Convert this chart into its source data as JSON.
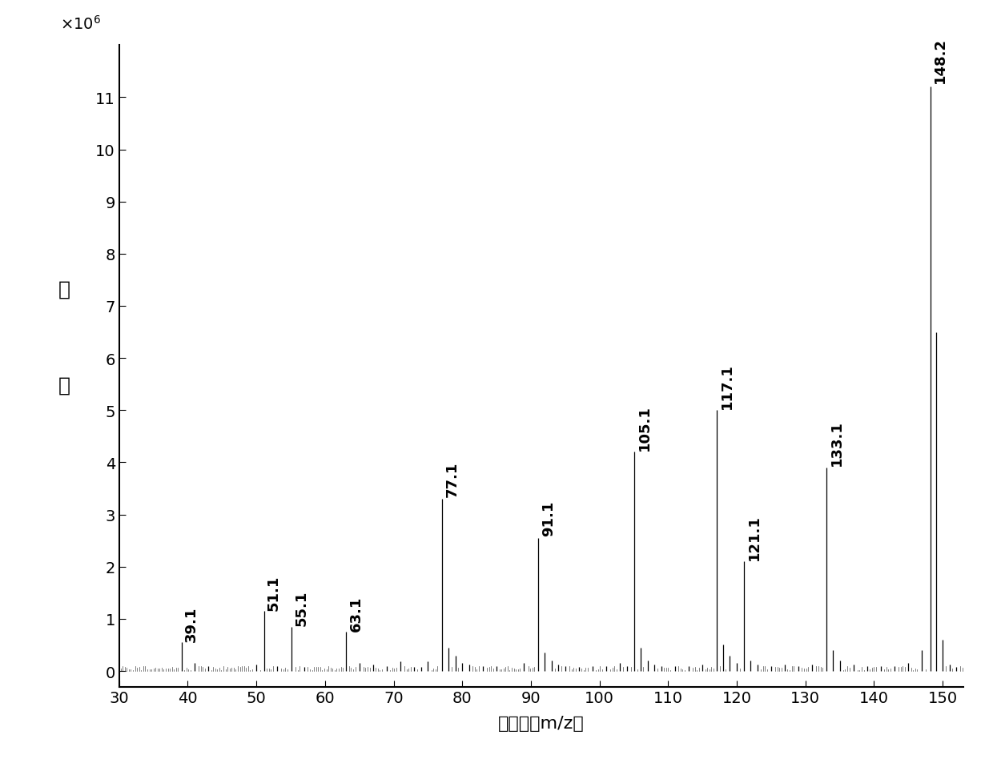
{
  "xlabel": "质荷比（m/z）",
  "ylabel_chars": [
    "强",
    "度"
  ],
  "xlim": [
    30,
    153
  ],
  "ylim": [
    -300000.0,
    12000000.0
  ],
  "background_color": "#ffffff",
  "line_color": "#000000",
  "peaks": [
    {
      "mz": 39.1,
      "intensity": 550000.0,
      "label": "39.1"
    },
    {
      "mz": 41.0,
      "intensity": 150000.0,
      "label": ""
    },
    {
      "mz": 43.0,
      "intensity": 100000.0,
      "label": ""
    },
    {
      "mz": 50.0,
      "intensity": 120000.0,
      "label": ""
    },
    {
      "mz": 51.1,
      "intensity": 1150000.0,
      "label": "51.1"
    },
    {
      "mz": 53.0,
      "intensity": 100000.0,
      "label": ""
    },
    {
      "mz": 55.1,
      "intensity": 850000.0,
      "label": "55.1"
    },
    {
      "mz": 57.0,
      "intensity": 80000.0,
      "label": ""
    },
    {
      "mz": 63.1,
      "intensity": 750000.0,
      "label": "63.1"
    },
    {
      "mz": 65.0,
      "intensity": 150000.0,
      "label": ""
    },
    {
      "mz": 67.0,
      "intensity": 120000.0,
      "label": ""
    },
    {
      "mz": 69.0,
      "intensity": 100000.0,
      "label": ""
    },
    {
      "mz": 71.0,
      "intensity": 180000.0,
      "label": ""
    },
    {
      "mz": 73.0,
      "intensity": 80000.0,
      "label": ""
    },
    {
      "mz": 74.0,
      "intensity": 80000.0,
      "label": ""
    },
    {
      "mz": 75.0,
      "intensity": 180000.0,
      "label": ""
    },
    {
      "mz": 77.1,
      "intensity": 3300000.0,
      "label": "77.1"
    },
    {
      "mz": 78.0,
      "intensity": 450000.0,
      "label": ""
    },
    {
      "mz": 79.0,
      "intensity": 300000.0,
      "label": ""
    },
    {
      "mz": 80.0,
      "intensity": 150000.0,
      "label": ""
    },
    {
      "mz": 81.0,
      "intensity": 120000.0,
      "label": ""
    },
    {
      "mz": 83.0,
      "intensity": 100000.0,
      "label": ""
    },
    {
      "mz": 85.0,
      "intensity": 100000.0,
      "label": ""
    },
    {
      "mz": 89.0,
      "intensity": 150000.0,
      "label": ""
    },
    {
      "mz": 91.1,
      "intensity": 2550000.0,
      "label": "91.1"
    },
    {
      "mz": 92.0,
      "intensity": 350000.0,
      "label": ""
    },
    {
      "mz": 93.0,
      "intensity": 200000.0,
      "label": ""
    },
    {
      "mz": 94.0,
      "intensity": 120000.0,
      "label": ""
    },
    {
      "mz": 95.0,
      "intensity": 100000.0,
      "label": ""
    },
    {
      "mz": 97.0,
      "intensity": 80000.0,
      "label": ""
    },
    {
      "mz": 99.0,
      "intensity": 100000.0,
      "label": ""
    },
    {
      "mz": 101.0,
      "intensity": 100000.0,
      "label": ""
    },
    {
      "mz": 103.0,
      "intensity": 150000.0,
      "label": ""
    },
    {
      "mz": 104.0,
      "intensity": 100000.0,
      "label": ""
    },
    {
      "mz": 105.1,
      "intensity": 4200000.0,
      "label": "105.1"
    },
    {
      "mz": 106.0,
      "intensity": 450000.0,
      "label": ""
    },
    {
      "mz": 107.0,
      "intensity": 200000.0,
      "label": ""
    },
    {
      "mz": 108.0,
      "intensity": 120000.0,
      "label": ""
    },
    {
      "mz": 109.0,
      "intensity": 100000.0,
      "label": ""
    },
    {
      "mz": 111.0,
      "intensity": 100000.0,
      "label": ""
    },
    {
      "mz": 113.0,
      "intensity": 100000.0,
      "label": ""
    },
    {
      "mz": 115.0,
      "intensity": 120000.0,
      "label": ""
    },
    {
      "mz": 117.1,
      "intensity": 5000000.0,
      "label": "117.1"
    },
    {
      "mz": 118.0,
      "intensity": 500000.0,
      "label": ""
    },
    {
      "mz": 119.0,
      "intensity": 300000.0,
      "label": ""
    },
    {
      "mz": 120.0,
      "intensity": 150000.0,
      "label": ""
    },
    {
      "mz": 121.1,
      "intensity": 2100000.0,
      "label": "121.1"
    },
    {
      "mz": 122.0,
      "intensity": 200000.0,
      "label": ""
    },
    {
      "mz": 123.0,
      "intensity": 120000.0,
      "label": ""
    },
    {
      "mz": 125.0,
      "intensity": 100000.0,
      "label": ""
    },
    {
      "mz": 127.0,
      "intensity": 120000.0,
      "label": ""
    },
    {
      "mz": 129.0,
      "intensity": 100000.0,
      "label": ""
    },
    {
      "mz": 131.0,
      "intensity": 120000.0,
      "label": ""
    },
    {
      "mz": 133.1,
      "intensity": 3900000.0,
      "label": "133.1"
    },
    {
      "mz": 134.0,
      "intensity": 400000.0,
      "label": ""
    },
    {
      "mz": 135.0,
      "intensity": 200000.0,
      "label": ""
    },
    {
      "mz": 137.0,
      "intensity": 120000.0,
      "label": ""
    },
    {
      "mz": 139.0,
      "intensity": 100000.0,
      "label": ""
    },
    {
      "mz": 141.0,
      "intensity": 100000.0,
      "label": ""
    },
    {
      "mz": 143.0,
      "intensity": 100000.0,
      "label": ""
    },
    {
      "mz": 145.0,
      "intensity": 150000.0,
      "label": ""
    },
    {
      "mz": 147.0,
      "intensity": 400000.0,
      "label": ""
    },
    {
      "mz": 148.2,
      "intensity": 11200000.0,
      "label": "148.2"
    },
    {
      "mz": 149.0,
      "intensity": 6500000.0,
      "label": ""
    },
    {
      "mz": 150.0,
      "intensity": 600000.0,
      "label": ""
    },
    {
      "mz": 151.0,
      "intensity": 120000.0,
      "label": ""
    },
    {
      "mz": 152.0,
      "intensity": 80000.0,
      "label": ""
    }
  ]
}
